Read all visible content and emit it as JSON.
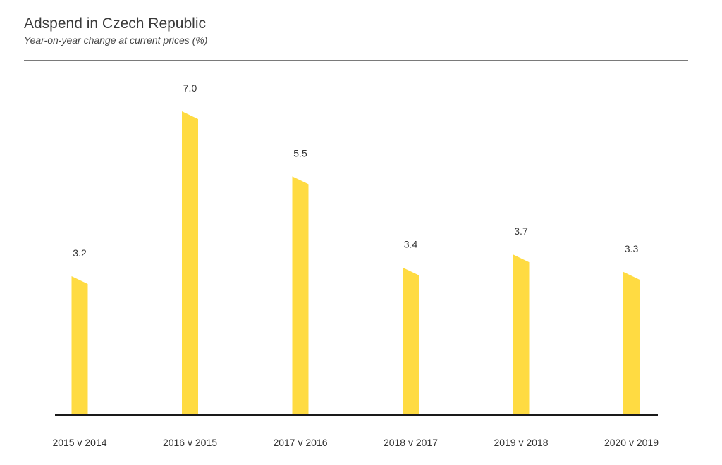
{
  "chart_data": {
    "type": "bar",
    "title": "Adspend in Czech Republic",
    "subtitle": "Year-on-year change at current prices (%)",
    "categories": [
      "2015 v 2014",
      "2016 v 2015",
      "2017 v 2016",
      "2018 v 2017",
      "2019 v 2018",
      "2020 v 2019"
    ],
    "values": [
      3.2,
      7.0,
      5.5,
      3.4,
      3.7,
      3.3
    ],
    "value_labels": [
      "3.2",
      "7.0",
      "5.5",
      "3.4",
      "3.7",
      "3.3"
    ],
    "xlabel": "",
    "ylabel": "",
    "ylim": [
      0,
      7.0
    ],
    "grid": false,
    "legend": "none",
    "colors": {
      "bar": "#FFDB42",
      "axis": "#1a1a1a",
      "rule": "#7a7a7a"
    }
  }
}
